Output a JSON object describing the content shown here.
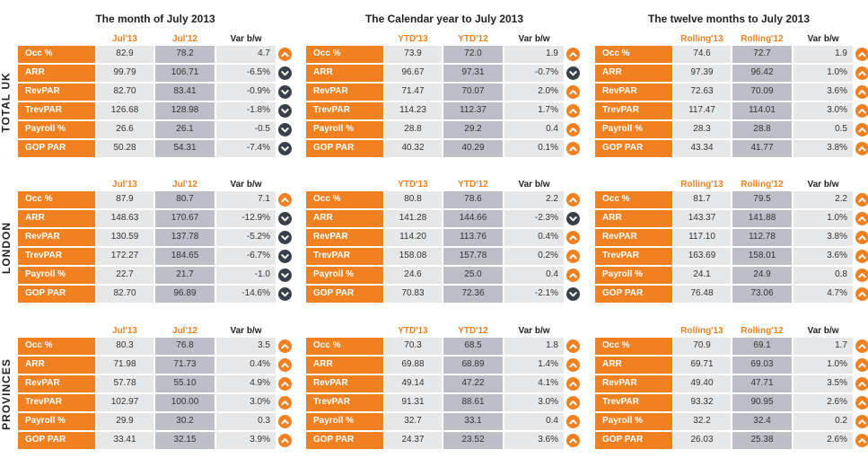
{
  "colors": {
    "orange": "#f08020",
    "dark": "#3b3f4a",
    "light_cell": "#e6e7e9",
    "mid_cell": "#bcbfc7"
  },
  "panel_titles": [
    "The month of July 2013",
    "The Calendar year to July 2013",
    "The twelve months to July 2013"
  ],
  "region_labels": [
    "TOTAL UK",
    "LONDON",
    "PROVINCES"
  ],
  "metrics": [
    "Occ %",
    "ARR",
    "RevPAR",
    "TrevPAR",
    "Payroll %",
    "GOP PAR"
  ],
  "col_headers": [
    [
      "Jul'13",
      "Jul'12",
      "Var b/w"
    ],
    [
      "YTD'13",
      "YTD'12",
      "Var b/w"
    ],
    [
      "Rolling'13",
      "Rolling'12",
      "Var b/w"
    ]
  ],
  "regions": [
    {
      "name": "TOTAL UK",
      "panels": [
        {
          "rows": [
            [
              "82.9",
              "78.2",
              "4.7",
              "up"
            ],
            [
              "99.79",
              "106.71",
              "-6.5%",
              "down"
            ],
            [
              "82.70",
              "83.41",
              "-0.9%",
              "down"
            ],
            [
              "126.68",
              "128.98",
              "-1.8%",
              "down"
            ],
            [
              "26.6",
              "26.1",
              "-0.5",
              "down"
            ],
            [
              "50.28",
              "54.31",
              "-7.4%",
              "down"
            ]
          ]
        },
        {
          "rows": [
            [
              "73.9",
              "72.0",
              "1.9",
              "up"
            ],
            [
              "96.67",
              "97.31",
              "-0.7%",
              "down"
            ],
            [
              "71.47",
              "70.07",
              "2.0%",
              "up"
            ],
            [
              "114.23",
              "112.37",
              "1.7%",
              "up"
            ],
            [
              "28.8",
              "29.2",
              "0.4",
              "up"
            ],
            [
              "40.32",
              "40.29",
              "0.1%",
              "up"
            ]
          ]
        },
        {
          "rows": [
            [
              "74.6",
              "72.7",
              "1.9",
              "up"
            ],
            [
              "97.39",
              "96.42",
              "1.0%",
              "up"
            ],
            [
              "72.63",
              "70.09",
              "3.6%",
              "up"
            ],
            [
              "117.47",
              "114.01",
              "3.0%",
              "up"
            ],
            [
              "28.3",
              "28.8",
              "0.5",
              "up"
            ],
            [
              "43.34",
              "41.77",
              "3.8%",
              "up"
            ]
          ]
        }
      ]
    },
    {
      "name": "LONDON",
      "panels": [
        {
          "rows": [
            [
              "87.9",
              "80.7",
              "7.1",
              "up"
            ],
            [
              "148.63",
              "170.67",
              "-12.9%",
              "down"
            ],
            [
              "130.59",
              "137.78",
              "-5.2%",
              "down"
            ],
            [
              "172.27",
              "184.65",
              "-6.7%",
              "down"
            ],
            [
              "22.7",
              "21.7",
              "-1.0",
              "down"
            ],
            [
              "82.70",
              "96.89",
              "-14.6%",
              "down"
            ]
          ]
        },
        {
          "rows": [
            [
              "80.8",
              "78.6",
              "2.2",
              "up"
            ],
            [
              "141.28",
              "144.66",
              "-2.3%",
              "down"
            ],
            [
              "114.20",
              "113.76",
              "0.4%",
              "up"
            ],
            [
              "158.08",
              "157.78",
              "0.2%",
              "up"
            ],
            [
              "24.6",
              "25.0",
              "0.4",
              "up"
            ],
            [
              "70.83",
              "72.36",
              "-2.1%",
              "down"
            ]
          ]
        },
        {
          "rows": [
            [
              "81.7",
              "79.5",
              "2.2",
              "up"
            ],
            [
              "143.37",
              "141.88",
              "1.0%",
              "up"
            ],
            [
              "117.10",
              "112.78",
              "3.8%",
              "up"
            ],
            [
              "163.69",
              "158.01",
              "3.6%",
              "up"
            ],
            [
              "24.1",
              "24.9",
              "0.8",
              "up"
            ],
            [
              "76.48",
              "73.06",
              "4.7%",
              "up"
            ]
          ]
        }
      ]
    },
    {
      "name": "PROVINCES",
      "panels": [
        {
          "rows": [
            [
              "80.3",
              "76.8",
              "3.5",
              "up"
            ],
            [
              "71.98",
              "71.73",
              "0.4%",
              "up"
            ],
            [
              "57.78",
              "55.10",
              "4.9%",
              "up"
            ],
            [
              "102.97",
              "100.00",
              "3.0%",
              "up"
            ],
            [
              "29.9",
              "30.2",
              "0.3",
              "up"
            ],
            [
              "33.41",
              "32.15",
              "3.9%",
              "up"
            ]
          ]
        },
        {
          "rows": [
            [
              "70.3",
              "68.5",
              "1.8",
              "up"
            ],
            [
              "69.88",
              "68.89",
              "1.4%",
              "up"
            ],
            [
              "49.14",
              "47.22",
              "4.1%",
              "up"
            ],
            [
              "91.31",
              "88.61",
              "3.0%",
              "up"
            ],
            [
              "32.7",
              "33.1",
              "0.4",
              "up"
            ],
            [
              "24.37",
              "23.52",
              "3.6%",
              "up"
            ]
          ]
        },
        {
          "rows": [
            [
              "70.9",
              "69.1",
              "1.7",
              "up"
            ],
            [
              "69.71",
              "69.03",
              "1.0%",
              "up"
            ],
            [
              "49.40",
              "47.71",
              "3.5%",
              "up"
            ],
            [
              "93.32",
              "90.95",
              "2.6%",
              "up"
            ],
            [
              "32.2",
              "32.4",
              "0.2",
              "up"
            ],
            [
              "26.03",
              "25.38",
              "2.6%",
              "up"
            ]
          ]
        }
      ]
    }
  ]
}
